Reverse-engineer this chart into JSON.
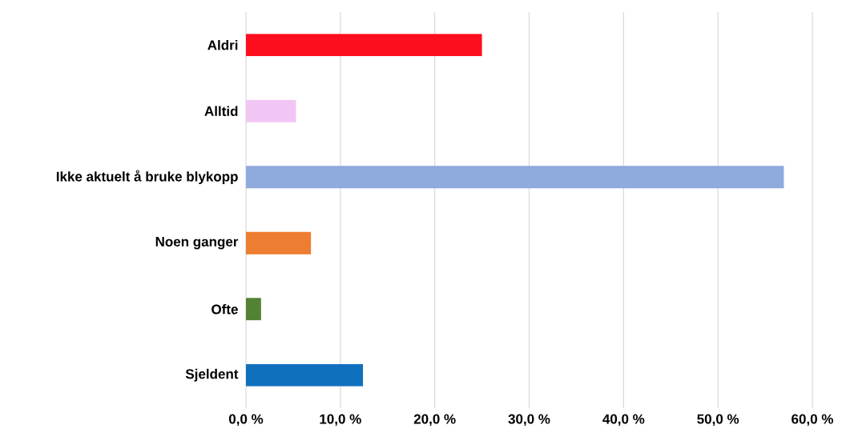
{
  "chart_data": {
    "type": "bar",
    "orientation": "horizontal",
    "categories": [
      "Aldri",
      "Alltid",
      "Ikke aktuelt å bruke blykopp",
      "Noen ganger",
      "Ofte",
      "Sjeldent"
    ],
    "values": [
      25.0,
      5.3,
      57.0,
      6.9,
      1.6,
      12.4
    ],
    "colors": [
      "#fe0d1e",
      "#f2c6f4",
      "#8faadc",
      "#ed7d31",
      "#548235",
      "#0f70be"
    ],
    "xlim": [
      0,
      60
    ],
    "xticks": [
      {
        "value": 0,
        "label": "0,0 %"
      },
      {
        "value": 10,
        "label": "10,0 %"
      },
      {
        "value": 20,
        "label": "20,0 %"
      },
      {
        "value": 30,
        "label": "30,0 %"
      },
      {
        "value": 40,
        "label": "40,0 %"
      },
      {
        "value": 50,
        "label": "50,0 %"
      },
      {
        "value": 60,
        "label": "60,0 %"
      }
    ],
    "grid": "x"
  }
}
